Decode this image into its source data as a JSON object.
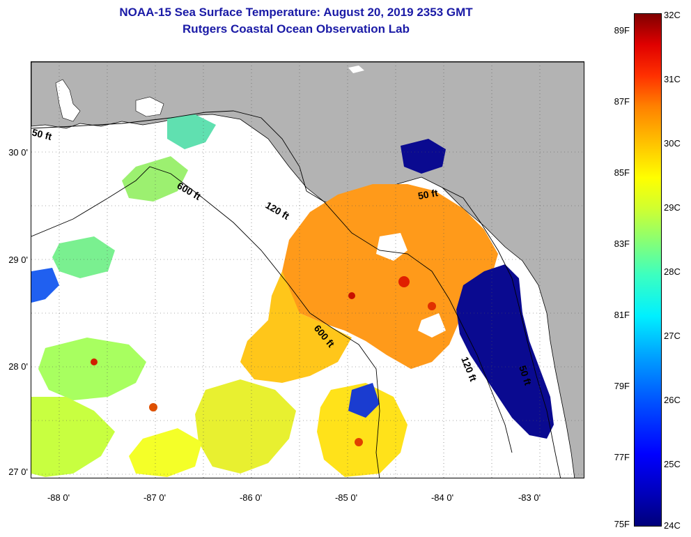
{
  "title": "NOAA-15 Sea Surface Temperature:  August 20, 2019 2353 GMT",
  "subtitle": "Rutgers Coastal Ocean Observation Lab",
  "lat_labels": [
    "30 0'",
    "29 0'",
    "28 0'",
    "27 0'"
  ],
  "lon_labels": [
    "-88 0'",
    "-87 0'",
    "-86 0'",
    "-85 0'",
    "-84 0'",
    "-83 0'"
  ],
  "contour_labels": {
    "a": "50 ft",
    "b": "600 ft",
    "c": "120 ft",
    "d": "50 ft",
    "e": "600 ft",
    "f": "120 ft",
    "g": "50 ft"
  },
  "colorbar": {
    "fahrenheit": [
      "89F",
      "87F",
      "85F",
      "83F",
      "81F",
      "79F",
      "77F",
      "75F"
    ],
    "celsius": [
      "32C",
      "31C",
      "30C",
      "29C",
      "28C",
      "27C",
      "26C",
      "25C",
      "24C"
    ]
  },
  "colors": {
    "land": "#b3b3b3",
    "title": "#1a1aa6",
    "cold": "#00008b",
    "warm": "#ff8c00"
  }
}
